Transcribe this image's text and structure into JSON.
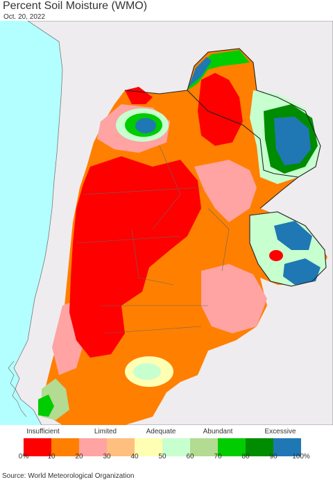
{
  "header": {
    "title": "Percent Soil Moisture (WMO)",
    "date": "Oct. 20, 2022"
  },
  "map": {
    "colors": {
      "ocean": "#b3ffff",
      "neighbor_land": "#efecef",
      "border": "#555555"
    }
  },
  "legend": {
    "categories": [
      "Insufficient",
      "Limited",
      "Adequate",
      "Abundant",
      "Excessive"
    ],
    "ticks": [
      "0%",
      "10",
      "20",
      "30",
      "40",
      "50",
      "60",
      "70",
      "80",
      "90",
      "100%"
    ],
    "colors": [
      "#ff0000",
      "#ff7f00",
      "#ffa3a3",
      "#ffbf7f",
      "#ffffb3",
      "#c7ffcf",
      "#b3db91",
      "#00cc00",
      "#008c00",
      "#1f78b4"
    ]
  },
  "footer": {
    "source": "Source: World Meteorological Organization"
  }
}
